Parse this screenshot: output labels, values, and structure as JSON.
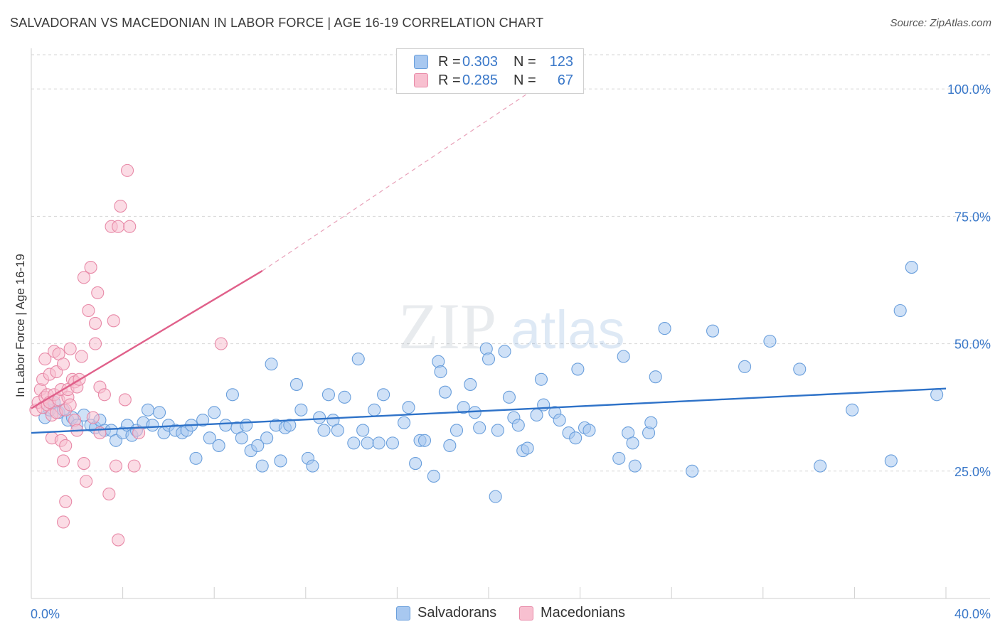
{
  "title": "SALVADORAN VS MACEDONIAN IN LABOR FORCE | AGE 16-19 CORRELATION CHART",
  "source": "Source: ZipAtlas.com",
  "watermark": {
    "zip": "ZIP",
    "atlas": "atlas"
  },
  "legend": {
    "rows": [
      {
        "r_label": "R =",
        "r_value": "0.303",
        "n_label": "N =",
        "n_value": "123",
        "color": "#a8c8f0",
        "border": "#6a9fdc"
      },
      {
        "r_label": "R =",
        "r_value": "0.285",
        "n_label": "N =",
        "n_value": "67",
        "color": "#f8c0d0",
        "border": "#e88aa8"
      }
    ],
    "bottom": [
      {
        "label": "Salvadorans",
        "color": "#a8c8f0",
        "border": "#6a9fdc"
      },
      {
        "label": "Macedonians",
        "color": "#f8c0d0",
        "border": "#e88aa8"
      }
    ]
  },
  "chart_data": {
    "type": "scatter",
    "title": "SALVADORAN VS MACEDONIAN IN LABOR FORCE | AGE 16-19 CORRELATION CHART",
    "xlabel": "",
    "ylabel": "In Labor Force | Age 16-19",
    "xlim": [
      0,
      40
    ],
    "ylim": [
      0,
      107
    ],
    "x_tick_labels": [
      "0.0%",
      "40.0%"
    ],
    "y_ticks": [
      25,
      50,
      75,
      100
    ],
    "y_tick_labels": [
      "25.0%",
      "50.0%",
      "75.0%",
      "100.0%"
    ],
    "grid": "horizontal-dashed",
    "legend_position": "top-center",
    "series": [
      {
        "name": "Salvadorans",
        "color": "#6a9fdc",
        "fill": "#a8c8f0",
        "trend": {
          "x": [
            0,
            40
          ],
          "y": [
            32.5,
            41.2
          ],
          "color": "#2e72c8"
        },
        "points": [
          [
            0.6,
            35.5
          ],
          [
            0.8,
            37
          ],
          [
            1.0,
            38.5
          ],
          [
            1.2,
            36.5
          ],
          [
            1.4,
            37
          ],
          [
            1.6,
            35
          ],
          [
            1.8,
            35.5
          ],
          [
            2.0,
            34
          ],
          [
            2.3,
            36
          ],
          [
            2.6,
            34
          ],
          [
            2.8,
            33.5
          ],
          [
            3.0,
            35
          ],
          [
            3.2,
            33
          ],
          [
            3.5,
            33
          ],
          [
            3.7,
            31
          ],
          [
            4.0,
            32.5
          ],
          [
            4.2,
            34
          ],
          [
            4.4,
            32
          ],
          [
            4.6,
            33
          ],
          [
            4.9,
            34.5
          ],
          [
            5.1,
            37
          ],
          [
            5.3,
            34
          ],
          [
            5.6,
            36.5
          ],
          [
            5.8,
            32.5
          ],
          [
            6.0,
            34
          ],
          [
            6.3,
            33
          ],
          [
            6.6,
            32.5
          ],
          [
            6.8,
            33
          ],
          [
            7.0,
            34
          ],
          [
            7.2,
            27.5
          ],
          [
            7.5,
            35
          ],
          [
            7.8,
            31.5
          ],
          [
            8.0,
            36.5
          ],
          [
            8.2,
            30
          ],
          [
            8.5,
            34
          ],
          [
            8.8,
            40
          ],
          [
            9.0,
            33.5
          ],
          [
            9.2,
            31.5
          ],
          [
            9.4,
            34
          ],
          [
            9.6,
            29
          ],
          [
            9.9,
            30
          ],
          [
            10.1,
            26
          ],
          [
            10.3,
            31.5
          ],
          [
            10.5,
            46
          ],
          [
            10.7,
            34
          ],
          [
            10.9,
            27
          ],
          [
            11.1,
            33.5
          ],
          [
            11.3,
            34
          ],
          [
            11.6,
            42
          ],
          [
            11.8,
            37
          ],
          [
            12.1,
            27.5
          ],
          [
            12.3,
            26
          ],
          [
            12.6,
            35.5
          ],
          [
            12.8,
            33
          ],
          [
            13.0,
            40
          ],
          [
            13.2,
            35
          ],
          [
            13.4,
            33
          ],
          [
            13.7,
            39.5
          ],
          [
            14.1,
            30.5
          ],
          [
            14.3,
            47
          ],
          [
            14.5,
            33
          ],
          [
            14.7,
            30.5
          ],
          [
            15.0,
            37
          ],
          [
            15.2,
            30.5
          ],
          [
            15.4,
            40
          ],
          [
            15.8,
            30.5
          ],
          [
            16.3,
            34.5
          ],
          [
            16.5,
            37.5
          ],
          [
            16.8,
            26.5
          ],
          [
            17.0,
            31
          ],
          [
            17.2,
            31
          ],
          [
            17.6,
            24
          ],
          [
            17.8,
            46.5
          ],
          [
            17.9,
            44.5
          ],
          [
            18.1,
            40.5
          ],
          [
            18.3,
            30
          ],
          [
            18.6,
            33
          ],
          [
            18.9,
            37.5
          ],
          [
            19.2,
            42
          ],
          [
            19.4,
            36.5
          ],
          [
            19.6,
            33.5
          ],
          [
            19.9,
            49
          ],
          [
            20.0,
            47
          ],
          [
            20.3,
            20
          ],
          [
            20.4,
            33
          ],
          [
            20.7,
            48.5
          ],
          [
            20.9,
            39.5
          ],
          [
            21.1,
            35.5
          ],
          [
            21.3,
            34
          ],
          [
            21.5,
            29
          ],
          [
            21.7,
            29.5
          ],
          [
            22.1,
            36
          ],
          [
            22.3,
            43
          ],
          [
            22.4,
            38
          ],
          [
            22.9,
            36.5
          ],
          [
            23.1,
            35
          ],
          [
            23.5,
            32.5
          ],
          [
            23.8,
            31.5
          ],
          [
            23.9,
            45
          ],
          [
            24.2,
            33.5
          ],
          [
            24.4,
            33
          ],
          [
            25.7,
            27.5
          ],
          [
            25.9,
            47.5
          ],
          [
            26.1,
            32.5
          ],
          [
            26.3,
            30.5
          ],
          [
            26.4,
            26
          ],
          [
            27.0,
            32.5
          ],
          [
            27.1,
            34.5
          ],
          [
            27.3,
            43.5
          ],
          [
            27.7,
            53
          ],
          [
            28.9,
            25
          ],
          [
            29.8,
            52.5
          ],
          [
            31.2,
            45.5
          ],
          [
            32.3,
            50.5
          ],
          [
            33.6,
            45
          ],
          [
            34.5,
            26
          ],
          [
            35.9,
            37
          ],
          [
            37.6,
            27
          ],
          [
            38.0,
            56.5
          ],
          [
            38.5,
            65
          ],
          [
            39.6,
            40
          ]
        ]
      },
      {
        "name": "Macedonians",
        "color": "#e88aa8",
        "fill": "#f8c0d0",
        "trend": {
          "x": [
            0,
            10.1
          ],
          "y": [
            37.3,
            64.3
          ],
          "dash_to": [
            22,
            100
          ],
          "color": "#e0608a"
        },
        "points": [
          [
            0.2,
            37
          ],
          [
            0.3,
            38.5
          ],
          [
            0.4,
            41
          ],
          [
            0.5,
            37.5
          ],
          [
            0.5,
            43
          ],
          [
            0.6,
            39.5
          ],
          [
            0.6,
            47
          ],
          [
            0.7,
            40
          ],
          [
            0.7,
            38
          ],
          [
            0.8,
            38.5
          ],
          [
            0.8,
            44
          ],
          [
            0.9,
            31.5
          ],
          [
            0.9,
            36
          ],
          [
            1.0,
            40
          ],
          [
            1.0,
            48.5
          ],
          [
            1.1,
            36.5
          ],
          [
            1.1,
            44.5
          ],
          [
            1.2,
            39
          ],
          [
            1.2,
            48
          ],
          [
            1.3,
            41
          ],
          [
            1.3,
            31
          ],
          [
            1.4,
            46
          ],
          [
            1.4,
            27
          ],
          [
            1.4,
            15
          ],
          [
            1.5,
            30
          ],
          [
            1.5,
            37
          ],
          [
            1.5,
            19
          ],
          [
            1.6,
            39.5
          ],
          [
            1.6,
            41
          ],
          [
            1.7,
            38
          ],
          [
            1.7,
            49
          ],
          [
            1.8,
            43
          ],
          [
            1.9,
            42.5
          ],
          [
            1.9,
            35
          ],
          [
            2.0,
            33
          ],
          [
            2.0,
            41.5
          ],
          [
            2.1,
            43
          ],
          [
            2.2,
            47.5
          ],
          [
            2.3,
            63
          ],
          [
            2.3,
            26.5
          ],
          [
            2.4,
            23
          ],
          [
            2.5,
            56.5
          ],
          [
            2.6,
            65
          ],
          [
            2.7,
            35.5
          ],
          [
            2.8,
            50
          ],
          [
            2.8,
            54
          ],
          [
            2.9,
            60
          ],
          [
            3.0,
            41.5
          ],
          [
            3.0,
            32.5
          ],
          [
            3.2,
            40
          ],
          [
            3.4,
            20.5
          ],
          [
            3.5,
            73
          ],
          [
            3.6,
            54.5
          ],
          [
            3.7,
            26
          ],
          [
            3.8,
            73
          ],
          [
            3.8,
            11.5
          ],
          [
            3.9,
            77
          ],
          [
            4.1,
            39
          ],
          [
            4.2,
            84
          ],
          [
            4.3,
            73
          ],
          [
            4.5,
            26
          ],
          [
            4.7,
            32.5
          ],
          [
            8.3,
            50
          ]
        ]
      }
    ]
  }
}
